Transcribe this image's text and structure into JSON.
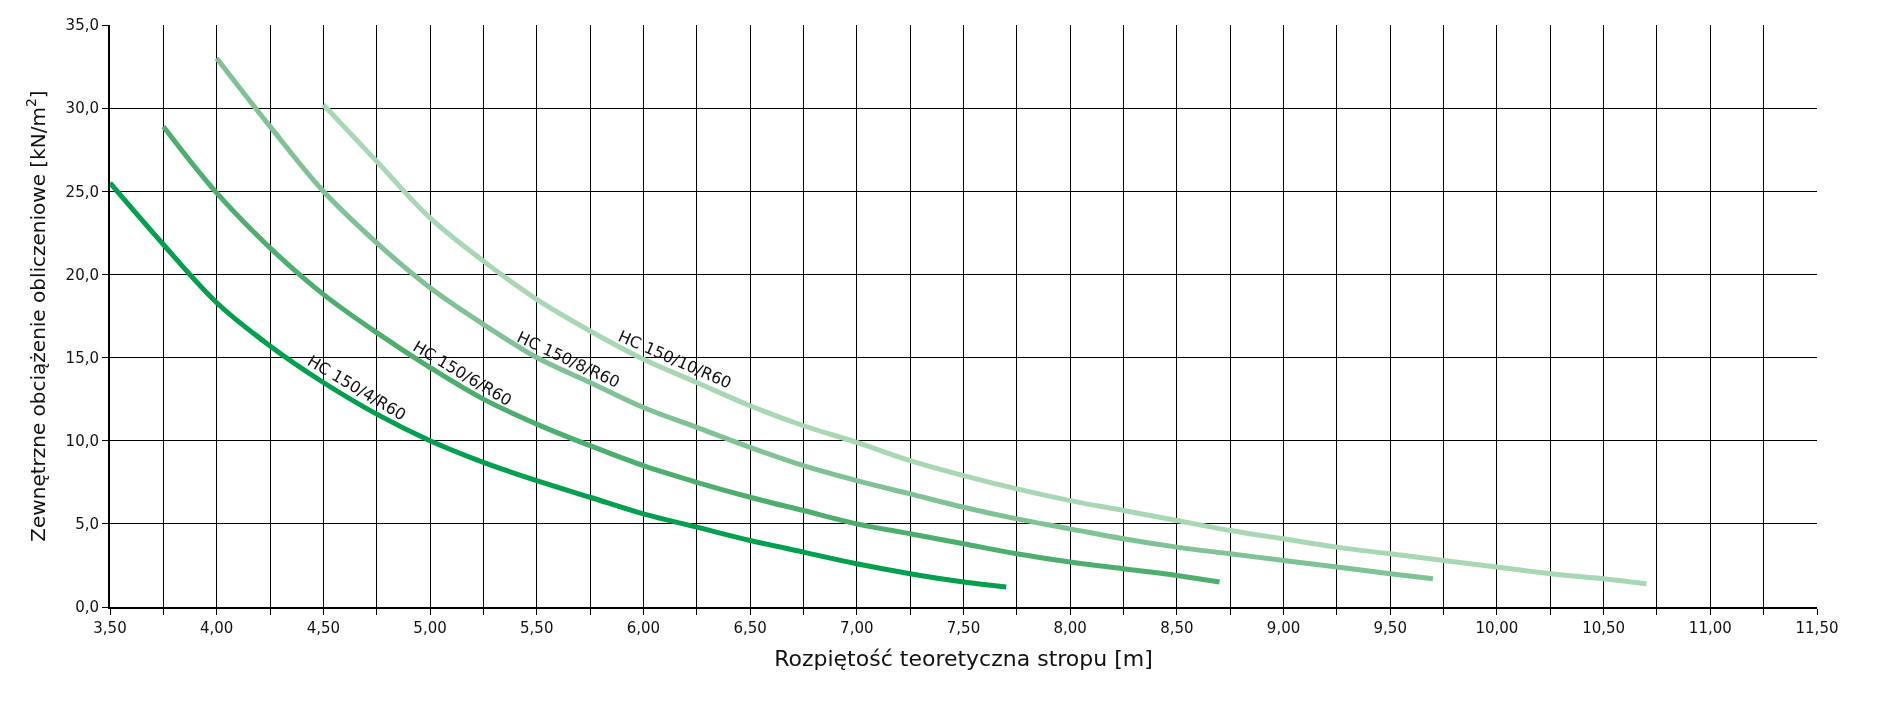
{
  "chart_data": {
    "type": "line",
    "xlabel": "Rozpiętość teoretyczna stropu [m]",
    "ylabel": "Zewnętrzne obciążenie obliczeniowe [kN/m$^{2}$]",
    "xlim": [
      3.5,
      11.5
    ],
    "xticks": [
      {
        "value": 3.5,
        "label": "3,50"
      },
      {
        "value": 3.75,
        "label": null
      },
      {
        "value": 4.0,
        "label": "4,00"
      },
      {
        "value": 4.25,
        "label": null
      },
      {
        "value": 4.5,
        "label": "4,50"
      },
      {
        "value": 4.75,
        "label": null
      },
      {
        "value": 5.0,
        "label": "5,00"
      },
      {
        "value": 5.25,
        "label": null
      },
      {
        "value": 5.5,
        "label": "5,50"
      },
      {
        "value": 5.75,
        "label": null
      },
      {
        "value": 6.0,
        "label": "6,00"
      },
      {
        "value": 6.25,
        "label": null
      },
      {
        "value": 6.5,
        "label": "6,50"
      },
      {
        "value": 6.75,
        "label": null
      },
      {
        "value": 7.0,
        "label": "7,00"
      },
      {
        "value": 7.25,
        "label": null
      },
      {
        "value": 7.5,
        "label": "7,50"
      },
      {
        "value": 7.75,
        "label": null
      },
      {
        "value": 8.0,
        "label": "8,00"
      },
      {
        "value": 8.25,
        "label": null
      },
      {
        "value": 8.5,
        "label": "8,50"
      },
      {
        "value": 8.75,
        "label": null
      },
      {
        "value": 9.0,
        "label": "9,00"
      },
      {
        "value": 9.25,
        "label": null
      },
      {
        "value": 9.5,
        "label": "9,50"
      },
      {
        "value": 9.75,
        "label": null
      },
      {
        "value": 10.0,
        "label": "10,00"
      },
      {
        "value": 10.25,
        "label": null
      },
      {
        "value": 10.5,
        "label": "10,50"
      },
      {
        "value": 10.75,
        "label": null
      },
      {
        "value": 11.0,
        "label": "11,00"
      },
      {
        "value": 11.25,
        "label": null
      },
      {
        "value": 11.5,
        "label": "11,50"
      }
    ],
    "ylim": [
      0,
      35
    ],
    "yticks": [
      {
        "value": 0,
        "label": "0,0"
      },
      {
        "value": 5,
        "label": "5,0"
      },
      {
        "value": 10,
        "label": "10,0"
      },
      {
        "value": 15,
        "label": "15,0"
      },
      {
        "value": 20,
        "label": "20,0"
      },
      {
        "value": 25,
        "label": "25,0"
      },
      {
        "value": 30,
        "label": "30,0"
      },
      {
        "value": 35,
        "label": "35,0"
      }
    ],
    "grid": true,
    "legend": false,
    "marker": "none",
    "line_style": "solid",
    "series": [
      {
        "name": "HC 150/4/R60",
        "color": "#00a04f",
        "x": [
          3.5,
          3.75,
          4.0,
          4.25,
          4.5,
          4.75,
          5.0,
          5.25,
          5.5,
          5.75,
          6.0,
          6.25,
          6.5,
          6.75,
          7.0,
          7.25,
          7.5,
          7.7
        ],
        "values": [
          25.5,
          21.8,
          18.3,
          15.7,
          13.5,
          11.6,
          10.0,
          8.7,
          7.6,
          6.6,
          5.6,
          4.8,
          4.0,
          3.3,
          2.6,
          2.0,
          1.5,
          1.2
        ]
      },
      {
        "name": "HC 150/6/R60",
        "color": "#4caf6e",
        "x": [
          3.75,
          4.0,
          4.25,
          4.5,
          4.75,
          5.0,
          5.25,
          5.5,
          5.75,
          6.0,
          6.25,
          6.5,
          6.75,
          7.0,
          7.25,
          7.5,
          7.75,
          8.0,
          8.25,
          8.5,
          8.7
        ],
        "values": [
          28.9,
          24.9,
          21.6,
          18.8,
          16.5,
          14.4,
          12.5,
          11.0,
          9.7,
          8.5,
          7.5,
          6.6,
          5.8,
          5.0,
          4.4,
          3.8,
          3.2,
          2.7,
          2.3,
          1.9,
          1.5
        ]
      },
      {
        "name": "HC 150/8/R60",
        "color": "#7fc394",
        "x": [
          4.0,
          4.25,
          4.5,
          4.75,
          5.0,
          5.25,
          5.5,
          5.75,
          6.0,
          6.25,
          6.5,
          6.75,
          7.0,
          7.25,
          7.5,
          7.75,
          8.0,
          8.25,
          8.5,
          8.75,
          9.0,
          9.25,
          9.5,
          9.7
        ],
        "values": [
          33.0,
          28.9,
          25.0,
          21.9,
          19.2,
          17.0,
          15.0,
          13.5,
          12.0,
          10.8,
          9.6,
          8.5,
          7.6,
          6.8,
          6.0,
          5.3,
          4.7,
          4.1,
          3.6,
          3.2,
          2.8,
          2.4,
          2.0,
          1.7
        ]
      },
      {
        "name": "HC 150/10/R60",
        "color": "#a8d8b3",
        "x": [
          4.5,
          4.75,
          5.0,
          5.25,
          5.5,
          5.75,
          6.0,
          6.25,
          6.5,
          6.75,
          7.0,
          7.25,
          7.5,
          7.75,
          8.0,
          8.25,
          8.5,
          8.75,
          9.0,
          9.25,
          9.5,
          9.75,
          10.0,
          10.25,
          10.5,
          10.7
        ],
        "values": [
          30.2,
          26.8,
          23.4,
          20.8,
          18.5,
          16.6,
          14.9,
          13.5,
          12.1,
          10.9,
          9.9,
          8.8,
          7.9,
          7.1,
          6.4,
          5.8,
          5.2,
          4.6,
          4.1,
          3.6,
          3.2,
          2.8,
          2.4,
          2.0,
          1.7,
          1.4
        ]
      }
    ]
  }
}
